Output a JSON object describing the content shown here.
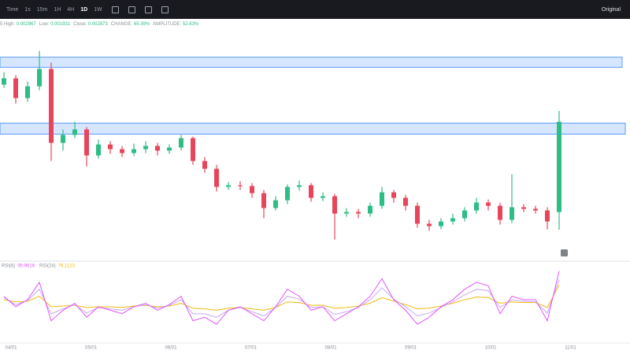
{
  "toolbar": {
    "items": [
      "Time",
      "1s",
      "15m",
      "1H",
      "4H",
      "1D",
      "1W"
    ],
    "selected": 5,
    "right": "Original"
  },
  "info": {
    "prefix": "5",
    "fields": [
      [
        "High:",
        "0.002967"
      ],
      [
        "Low:",
        "0.001931"
      ],
      [
        "Close:",
        "0.002873"
      ],
      [
        "CHANGE:",
        "65.39%"
      ],
      [
        "AMPLITUDE:",
        "52.63%"
      ]
    ]
  },
  "x_axis": {
    "labels": [
      "04/01",
      "05/01",
      "06/01",
      "07/01",
      "08/01",
      "09/01",
      "10/01",
      "11/01"
    ]
  },
  "chart_data": [
    {
      "type": "candlestick",
      "up_color": "#2ebd85",
      "down_color": "#e8455a",
      "zone_color": "#cfe2ff",
      "ylim": [
        0.00167,
        0.00373
      ],
      "open": [
        0.003197,
        0.003252,
        0.00308,
        0.003183,
        0.003334,
        0.002689,
        0.002758,
        0.002806,
        0.002579,
        0.002675,
        0.002634,
        0.0026,
        0.002634,
        0.002662,
        0.002621,
        0.002648,
        0.00273,
        0.002531,
        0.002463,
        0.002305,
        0.002319,
        0.002312,
        0.00225,
        0.00212,
        0.002188,
        0.002305,
        0.002319,
        0.002209,
        0.002223,
        0.002072,
        0.002085,
        0.002072,
        0.00214,
        0.002257,
        0.002209,
        0.00214,
        0.001983,
        0.001962,
        0.002003,
        0.002031,
        0.002099,
        0.002168,
        0.00214,
        0.002017,
        0.002127,
        0.002113,
        0.002099,
        0.002085
      ],
      "high": [
        0.003307,
        0.003279,
        0.003224,
        0.003492,
        0.003389,
        0.002806,
        0.002874,
        0.002826,
        0.002717,
        0.002703,
        0.002662,
        0.002682,
        0.002703,
        0.002689,
        0.002675,
        0.002758,
        0.002744,
        0.002566,
        0.002497,
        0.002346,
        0.002353,
        0.002339,
        0.002278,
        0.002223,
        0.002326,
        0.00236,
        0.002339,
        0.002257,
        0.002243,
        0.00212,
        0.002113,
        0.002168,
        0.002305,
        0.002278,
        0.002236,
        0.002168,
        0.002017,
        0.002031,
        0.002072,
        0.002127,
        0.002209,
        0.002195,
        0.002168,
        0.002415,
        0.002154,
        0.00214,
        0.002127,
        0.002967
      ],
      "low": [
        0.003169,
        0.003032,
        0.003046,
        0.003149,
        0.002531,
        0.002621,
        0.00273,
        0.002483,
        0.002552,
        0.002593,
        0.002566,
        0.002573,
        0.0026,
        0.002579,
        0.002593,
        0.002621,
        0.002497,
        0.002428,
        0.002264,
        0.002278,
        0.002278,
        0.002209,
        0.002031,
        0.002099,
        0.002154,
        0.002271,
        0.002175,
        0.002181,
        0.001845,
        0.002044,
        0.002031,
        0.002044,
        0.002113,
        0.002168,
        0.002099,
        0.001948,
        0.001921,
        0.001935,
        0.001976,
        0.002003,
        0.002072,
        0.002099,
        0.001976,
        0.001989,
        0.002085,
        0.002072,
        0.001935,
        0.001931
      ],
      "close": [
        0.003252,
        0.00308,
        0.003183,
        0.003334,
        0.002689,
        0.002758,
        0.002806,
        0.002579,
        0.002675,
        0.002634,
        0.0026,
        0.002634,
        0.002662,
        0.002621,
        0.002648,
        0.00273,
        0.002531,
        0.002463,
        0.002305,
        0.002319,
        0.002312,
        0.00225,
        0.00212,
        0.002188,
        0.002305,
        0.002319,
        0.002209,
        0.002223,
        0.002072,
        0.002085,
        0.002072,
        0.00214,
        0.002257,
        0.002209,
        0.00214,
        0.001983,
        0.001962,
        0.002003,
        0.002031,
        0.002099,
        0.002168,
        0.00214,
        0.002017,
        0.002127,
        0.002113,
        0.002099,
        0.002003,
        0.002873
      ],
      "zones": [
        {
          "top": 0.003437,
          "bottom": 0.003348
        },
        {
          "top": 0.002861,
          "bottom": 0.002765
        }
      ]
    },
    {
      "type": "line",
      "ylim": [
        0,
        100
      ],
      "series": [
        {
          "name": "RSI(6)",
          "color": "#e056fd",
          "values": [
            60,
            45,
            55,
            80,
            25,
            40,
            50,
            30,
            45,
            40,
            35,
            45,
            50,
            40,
            48,
            60,
            25,
            30,
            20,
            40,
            45,
            35,
            25,
            45,
            70,
            60,
            40,
            45,
            25,
            35,
            45,
            60,
            85,
            55,
            40,
            20,
            30,
            45,
            55,
            70,
            80,
            75,
            35,
            60,
            55,
            55,
            25,
            95.9616
          ]
        },
        {
          "color": "#c9a7f5",
          "values": [
            58,
            48,
            54,
            70,
            35,
            42,
            48,
            36,
            44,
            42,
            40,
            45,
            48,
            43,
            47,
            55,
            35,
            35,
            30,
            40,
            44,
            38,
            32,
            44,
            60,
            56,
            44,
            45,
            34,
            38,
            44,
            55,
            72,
            56,
            45,
            32,
            36,
            44,
            52,
            62,
            70,
            68,
            44,
            55,
            53,
            52,
            36,
            84
          ]
        },
        {
          "name": "RSI(24)",
          "color": "#f0b90b",
          "values": [
            55,
            52,
            53,
            60,
            45,
            46,
            47,
            44,
            45,
            45,
            44,
            46,
            47,
            45,
            46,
            50,
            43,
            42,
            40,
            43,
            44,
            42,
            40,
            44,
            52,
            51,
            47,
            47,
            43,
            44,
            46,
            50,
            58,
            53,
            48,
            42,
            43,
            46,
            50,
            55,
            59,
            58,
            50,
            52,
            51,
            51,
            44,
            76.1123
          ]
        }
      ]
    }
  ]
}
